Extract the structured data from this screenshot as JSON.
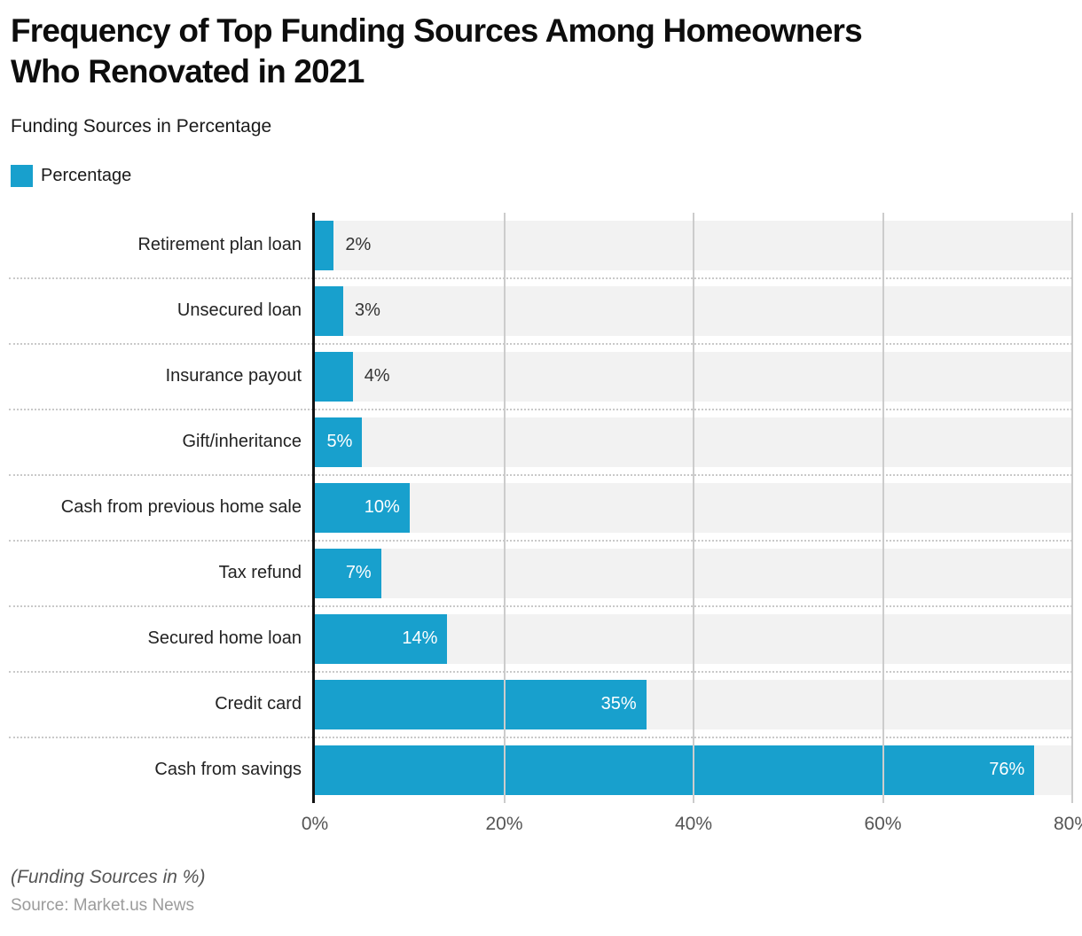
{
  "header": {
    "title": "Frequency of Top Funding Sources Among Homeowners Who Renovated in 2021",
    "title_lines": [
      "Frequency of Top Funding Sources Among Homeowners",
      "Who Renovated in 2021"
    ],
    "subtitle": "Funding Sources in Percentage"
  },
  "legend": {
    "label": "Percentage",
    "swatch_color": "#18a0cd"
  },
  "chart_data": {
    "type": "bar",
    "orientation": "horizontal",
    "title": "Frequency of Top Funding Sources Among Homeowners Who Renovated in 2021",
    "subtitle": "Funding Sources in Percentage",
    "series_name": "Percentage",
    "categories": [
      "Retirement plan loan",
      "Unsecured loan",
      "Insurance payout",
      "Gift/inheritance",
      "Cash from previous home sale",
      "Tax refund",
      "Secured home loan",
      "Credit card",
      "Cash from savings"
    ],
    "values": [
      2,
      3,
      4,
      5,
      10,
      7,
      14,
      35,
      76
    ],
    "value_labels": [
      "2%",
      "3%",
      "4%",
      "5%",
      "10%",
      "7%",
      "14%",
      "35%",
      "76%"
    ],
    "x_ticks": [
      "0%",
      "20%",
      "40%",
      "60%",
      "80%"
    ],
    "x_tick_values": [
      0,
      20,
      40,
      60,
      80
    ],
    "xlim": [
      0,
      80
    ],
    "grid": "vertical-solid-with-dotted-row-separators",
    "legend_position": "top-left",
    "bar_color": "#18a0cd",
    "track_color": "#f2f2f2",
    "inside_label_threshold": 5
  },
  "footer": {
    "note": "(Funding Sources in %)",
    "source": "Source: Market.us News"
  }
}
